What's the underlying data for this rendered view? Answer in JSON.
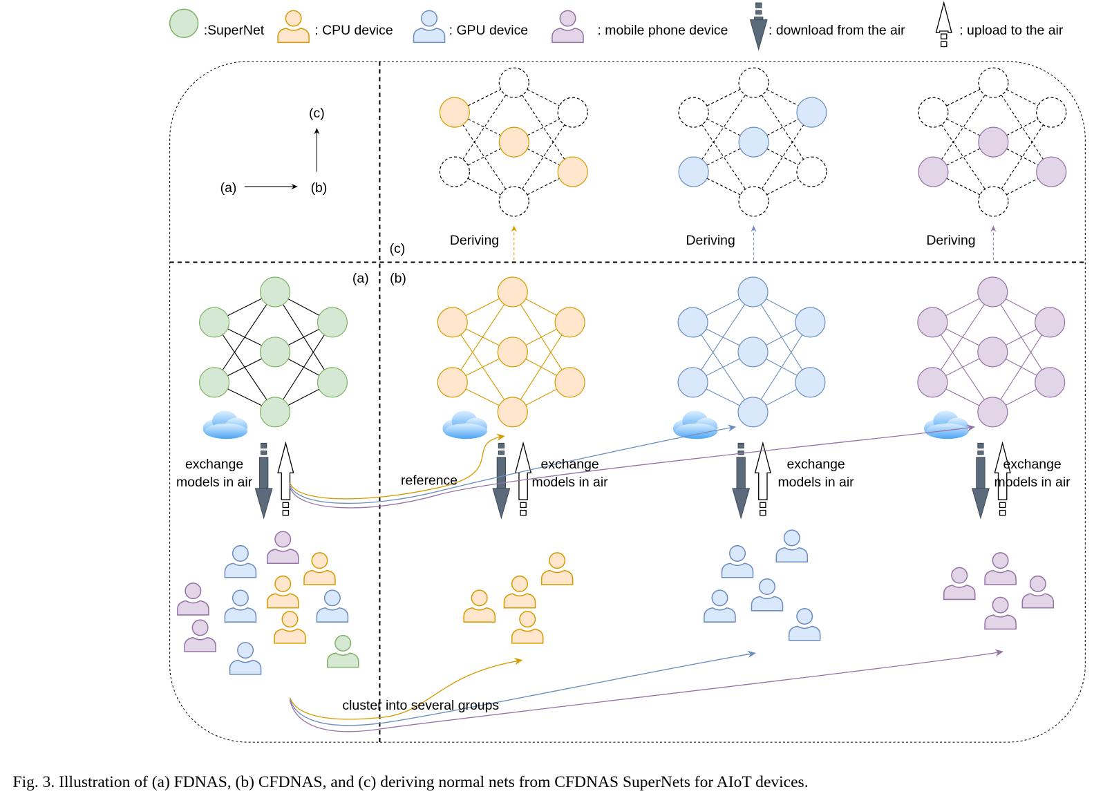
{
  "legend": [
    ":SuperNet",
    ": CPU device",
    ": GPU device",
    ": mobile phone device",
    ": download from the air",
    ": upload to the air"
  ],
  "order_diagram": {
    "c": "(c)",
    "a": "(a)",
    "b": "(b)"
  },
  "panel_labels": {
    "c": "(c)",
    "a": "(a)",
    "b": "(b)"
  },
  "deriving": [
    "Deriving",
    "Deriving",
    "Deriving"
  ],
  "exchange": [
    [
      "exchange",
      "models in air"
    ],
    [
      "exchange",
      "models in air"
    ],
    [
      "exchange",
      "models in air"
    ],
    [
      "exchange",
      "models in air"
    ]
  ],
  "reference": "reference",
  "cluster": "cluster into several groups",
  "caption": "Fig. 3.    Illustration of (a) FDNAS, (b) CFDNAS, and (c) deriving normal nets from CFDNAS SuperNets for AIoT devices."
}
